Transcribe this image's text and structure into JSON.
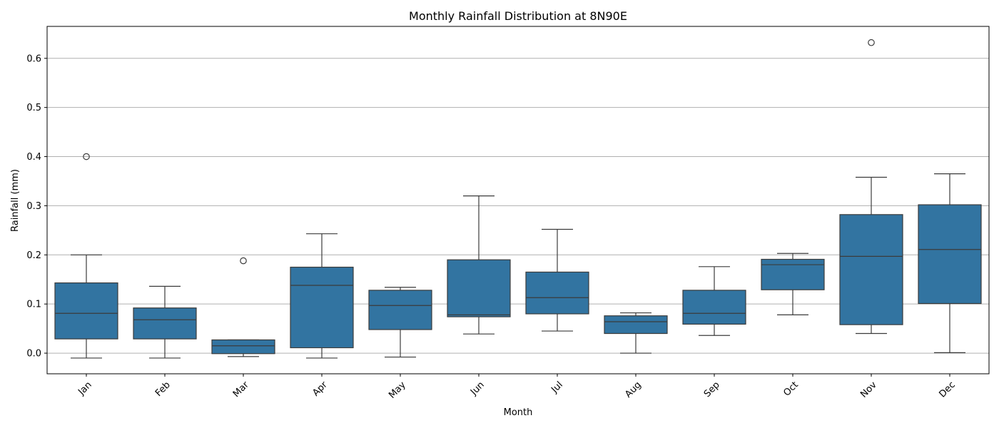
{
  "chart_data": {
    "type": "box",
    "title": "Monthly Rainfall Distribution at 8N90E",
    "xlabel": "Month",
    "ylabel": "Rainfall (mm)",
    "ylim": [
      -0.042,
      0.665
    ],
    "yticks": [
      0.0,
      0.1,
      0.2,
      0.3,
      0.4,
      0.5,
      0.6
    ],
    "ytick_labels": [
      "0.0",
      "0.1",
      "0.2",
      "0.3",
      "0.4",
      "0.5",
      "0.6"
    ],
    "grid": "horizontal",
    "colors": {
      "box_fill": "#3274a1",
      "line": "#3b3b3b",
      "grid": "#b0b0b0"
    },
    "categories": [
      "Jan",
      "Feb",
      "Mar",
      "Apr",
      "May",
      "Jun",
      "Jul",
      "Aug",
      "Sep",
      "Oct",
      "Nov",
      "Dec"
    ],
    "boxes": [
      {
        "whislo": -0.01,
        "q1": 0.029,
        "med": 0.081,
        "q3": 0.143,
        "whishi": 0.2,
        "fliers": [
          0.4
        ]
      },
      {
        "whislo": -0.01,
        "q1": 0.029,
        "med": 0.068,
        "q3": 0.092,
        "whishi": 0.136,
        "fliers": []
      },
      {
        "whislo": -0.007,
        "q1": -0.001,
        "med": 0.015,
        "q3": 0.027,
        "whishi": 0.027,
        "fliers": [
          0.188
        ]
      },
      {
        "whislo": -0.01,
        "q1": 0.011,
        "med": 0.138,
        "q3": 0.175,
        "whishi": 0.243,
        "fliers": []
      },
      {
        "whislo": -0.008,
        "q1": 0.048,
        "med": 0.097,
        "q3": 0.128,
        "whishi": 0.134,
        "fliers": []
      },
      {
        "whislo": 0.039,
        "q1": 0.074,
        "med": 0.078,
        "q3": 0.19,
        "whishi": 0.32,
        "fliers": []
      },
      {
        "whislo": 0.045,
        "q1": 0.08,
        "med": 0.113,
        "q3": 0.165,
        "whishi": 0.252,
        "fliers": []
      },
      {
        "whislo": 0.0,
        "q1": 0.04,
        "med": 0.064,
        "q3": 0.076,
        "whishi": 0.082,
        "fliers": []
      },
      {
        "whislo": 0.036,
        "q1": 0.059,
        "med": 0.081,
        "q3": 0.128,
        "whishi": 0.176,
        "fliers": []
      },
      {
        "whislo": 0.078,
        "q1": 0.129,
        "med": 0.18,
        "q3": 0.191,
        "whishi": 0.203,
        "fliers": []
      },
      {
        "whislo": 0.04,
        "q1": 0.058,
        "med": 0.197,
        "q3": 0.282,
        "whishi": 0.358,
        "fliers": [
          0.632
        ]
      },
      {
        "whislo": 0.001,
        "q1": 0.101,
        "med": 0.211,
        "q3": 0.302,
        "whishi": 0.365,
        "fliers": []
      }
    ]
  }
}
